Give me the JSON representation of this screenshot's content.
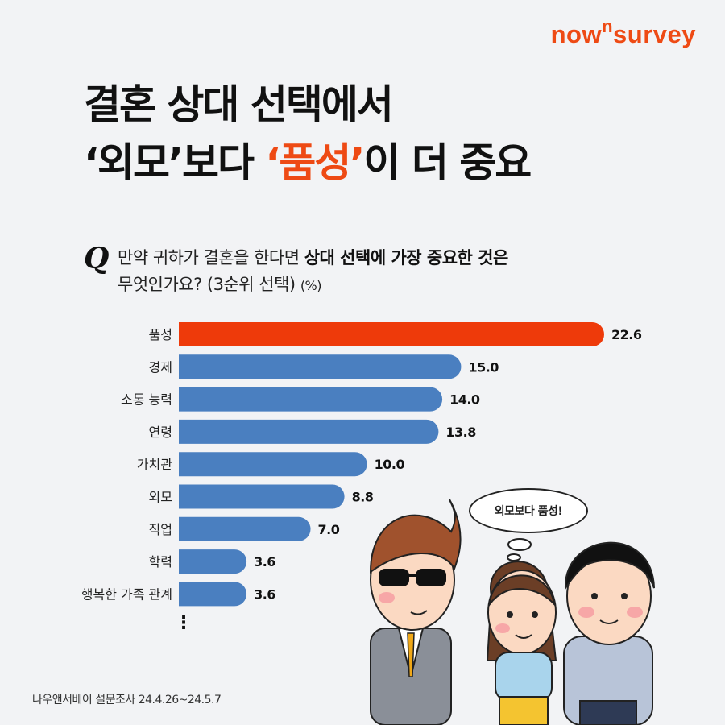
{
  "brand": {
    "logo_pre": "now",
    "logo_sup": "n",
    "logo_post": "survey"
  },
  "headline": {
    "line1": "결혼 상대 선택에서",
    "line2_a": "‘외모’보다 ",
    "line2_accent": "‘품성’",
    "line2_b": "이 더 중요"
  },
  "question": {
    "mark": "Q",
    "text_a": "만약 귀하가 결혼을 한다면 ",
    "text_bold": "상대 선택에 가장 중요한 것은",
    "text_b": "무엇인가요? (3순위 선택) ",
    "unit": "(%)"
  },
  "chart_data": {
    "type": "bar",
    "orientation": "horizontal",
    "categories": [
      "품성",
      "경제",
      "소통 능력",
      "연령",
      "가치관",
      "외모",
      "직업",
      "학력",
      "행복한 가족 관계"
    ],
    "values": [
      22.6,
      15.0,
      14.0,
      13.8,
      10.0,
      8.8,
      7.0,
      3.6,
      3.6
    ],
    "value_labels": [
      "22.6",
      "15.0",
      "14.0",
      "13.8",
      "10.0",
      "8.8",
      "7.0",
      "3.6",
      "3.6"
    ],
    "highlight_index": 0,
    "colors": {
      "highlight": "#ee3a0a",
      "default": "#4a7fc0"
    },
    "unit": "%",
    "more_indicator": "⋮"
  },
  "speech_bubble": "외모보다 품성!",
  "source": "나우앤서베이 설문조사 24.4.26~24.5.7"
}
